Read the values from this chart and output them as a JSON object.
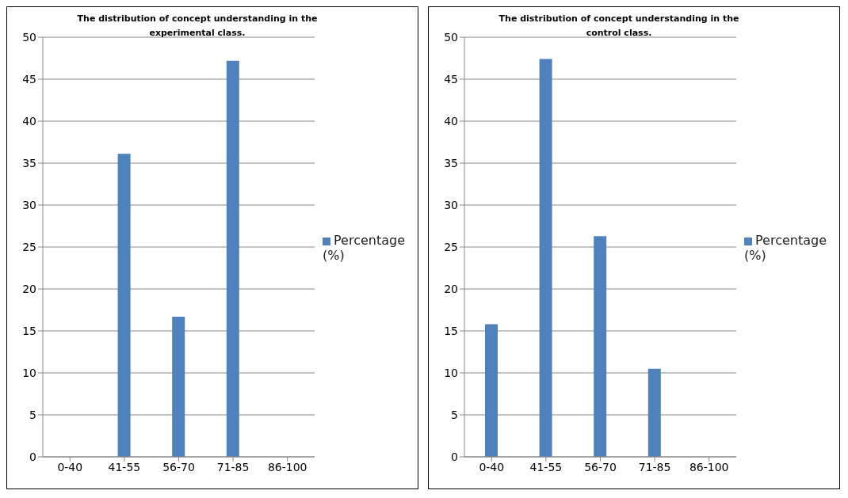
{
  "chart_data": [
    {
      "type": "bar",
      "title": "The distribution of concept understanding in the experimental class.",
      "categories": [
        "0-40",
        "41-55",
        "56-70",
        "71-85",
        "86-100"
      ],
      "series": [
        {
          "name": "Percentage (%)",
          "color": "#4f81bd",
          "values": [
            0,
            36.1,
            16.7,
            47.2,
            0
          ]
        }
      ],
      "ylim": [
        0,
        50
      ],
      "yticks": [
        0,
        5,
        10,
        15,
        20,
        25,
        30,
        35,
        40,
        45,
        50
      ],
      "grid": "y",
      "legend": "right"
    },
    {
      "type": "bar",
      "title": "The distribution of concept understanding in the control  class.",
      "categories": [
        "0-40",
        "41-55",
        "56-70",
        "71-85",
        "86-100"
      ],
      "series": [
        {
          "name": "Percentage (%)",
          "color": "#4f81bd",
          "values": [
            15.8,
            47.4,
            26.3,
            10.5,
            0
          ]
        }
      ],
      "ylim": [
        0,
        50
      ],
      "yticks": [
        0,
        5,
        10,
        15,
        20,
        25,
        30,
        35,
        40,
        45,
        50
      ],
      "grid": "y",
      "legend": "right"
    }
  ]
}
